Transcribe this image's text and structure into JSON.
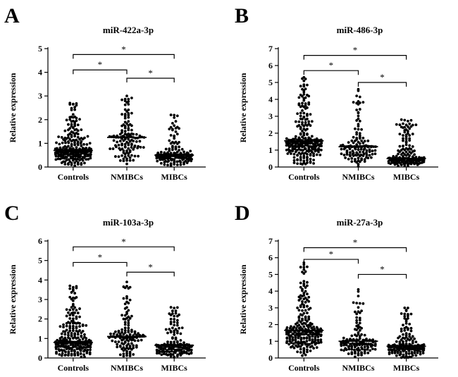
{
  "figure": {
    "dot_color": "#000000",
    "line_color": "#000000",
    "background": "#ffffff"
  },
  "chart_data": [
    {
      "panel": "A",
      "type": "scatter",
      "title": "miR-422a-3p",
      "xlabel": "",
      "ylabel": "Relative expression",
      "ylim": [
        0,
        5
      ],
      "yticks": [
        0,
        1,
        2,
        3,
        4,
        5
      ],
      "categories": [
        "Controls",
        "NMIBCs",
        "MIBCs"
      ],
      "medians": [
        0.7,
        1.25,
        0.5
      ],
      "max_values": [
        2.7,
        3.0,
        2.2
      ],
      "group_sizes": [
        240,
        130,
        160
      ],
      "significance": [
        {
          "from": 0,
          "to": 1,
          "label": "*",
          "y": 4.1
        },
        {
          "from": 0,
          "to": 2,
          "label": "*",
          "y": 4.75
        },
        {
          "from": 1,
          "to": 2,
          "label": "*",
          "y": 3.75
        }
      ]
    },
    {
      "panel": "B",
      "type": "scatter",
      "title": "miR-486-3p",
      "xlabel": "",
      "ylabel": "Relative expression",
      "ylim": [
        0,
        7
      ],
      "yticks": [
        0,
        1,
        2,
        3,
        4,
        5,
        6,
        7
      ],
      "categories": [
        "Controls",
        "NMIBCs",
        "MIBCs"
      ],
      "medians": [
        1.55,
        1.2,
        0.5
      ],
      "max_values": [
        5.3,
        4.6,
        2.8
      ],
      "group_sizes": [
        240,
        130,
        160
      ],
      "significance": [
        {
          "from": 0,
          "to": 1,
          "label": "*",
          "y": 5.7
        },
        {
          "from": 0,
          "to": 2,
          "label": "*",
          "y": 6.6
        },
        {
          "from": 1,
          "to": 2,
          "label": "*",
          "y": 5.0
        }
      ]
    },
    {
      "panel": "C",
      "type": "scatter",
      "title": "miR-103a-3p",
      "xlabel": "",
      "ylabel": "Relative expression",
      "ylim": [
        0,
        6
      ],
      "yticks": [
        0,
        1,
        2,
        3,
        4,
        5,
        6
      ],
      "categories": [
        "Controls",
        "NMIBCs",
        "MIBCs"
      ],
      "medians": [
        0.8,
        1.1,
        0.65
      ],
      "max_values": [
        3.7,
        3.9,
        2.6
      ],
      "group_sizes": [
        240,
        130,
        160
      ],
      "significance": [
        {
          "from": 0,
          "to": 1,
          "label": "*",
          "y": 4.9
        },
        {
          "from": 0,
          "to": 2,
          "label": "*",
          "y": 5.7
        },
        {
          "from": 1,
          "to": 2,
          "label": "*",
          "y": 4.4
        }
      ]
    },
    {
      "panel": "D",
      "type": "scatter",
      "title": "miR-27a-3p",
      "xlabel": "",
      "ylabel": "Relative expression",
      "ylim": [
        0,
        7
      ],
      "yticks": [
        0,
        1,
        2,
        3,
        4,
        5,
        6,
        7
      ],
      "categories": [
        "Controls",
        "NMIBCs",
        "MIBCs"
      ],
      "medians": [
        1.65,
        1.0,
        0.7
      ],
      "max_values": [
        5.7,
        4.1,
        3.0
      ],
      "group_sizes": [
        240,
        130,
        160
      ],
      "significance": [
        {
          "from": 0,
          "to": 1,
          "label": "*",
          "y": 5.9
        },
        {
          "from": 0,
          "to": 2,
          "label": "*",
          "y": 6.6
        },
        {
          "from": 1,
          "to": 2,
          "label": "*",
          "y": 5.0
        }
      ]
    }
  ]
}
